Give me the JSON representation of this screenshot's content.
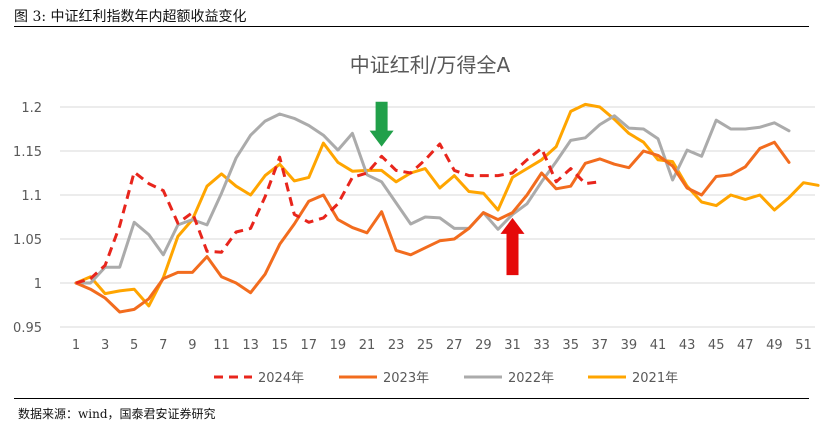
{
  "figure_caption": "图 3:  中证红利指数年内超额收益变化",
  "source_note": "数据来源：wind，国泰君安证券研究",
  "colors": {
    "s2024": "#E8251C",
    "s2023": "#F26C1E",
    "s2022": "#ABABAB",
    "s2021": "#FFA500",
    "arrow_up": "#E50A0A",
    "arrow_down": "#21A04A"
  },
  "chart_data": {
    "type": "line",
    "title": "中证红利/万得全A",
    "xlabel": "",
    "ylabel": "",
    "xlim": [
      1,
      52
    ],
    "ylim": [
      0.95,
      1.2
    ],
    "yticks": [
      "0.95",
      "1",
      "1.05",
      "1.1",
      "1.15",
      "1.2"
    ],
    "xticks": [
      "1",
      "3",
      "5",
      "7",
      "9",
      "11",
      "13",
      "15",
      "17",
      "19",
      "21",
      "23",
      "25",
      "27",
      "29",
      "31",
      "33",
      "35",
      "37",
      "39",
      "41",
      "43",
      "45",
      "47",
      "49",
      "51"
    ],
    "grid": true,
    "legend_position": "bottom",
    "annotations": [
      {
        "type": "arrow-down",
        "x": 22,
        "y_tip": 1.155,
        "y_tail": 1.206
      },
      {
        "type": "arrow-up",
        "x": 31,
        "y_tip": 1.074,
        "y_tail": 1.009
      }
    ],
    "series": [
      {
        "name": "2024年",
        "style": "dashed",
        "values": [
          1.0,
          1.005,
          1.02,
          1.065,
          1.126,
          1.113,
          1.105,
          1.068,
          1.08,
          1.036,
          1.035,
          1.058,
          1.062,
          1.098,
          1.143,
          1.078,
          1.069,
          1.074,
          1.09,
          1.12,
          1.125,
          1.144,
          1.128,
          1.125,
          1.14,
          1.158,
          1.128,
          1.122,
          1.122,
          1.122,
          1.125,
          1.14,
          1.153,
          1.115,
          1.13,
          1.113,
          1.115
        ]
      },
      {
        "name": "2023年",
        "style": "solid",
        "values": [
          1.0,
          0.993,
          0.983,
          0.967,
          0.97,
          0.982,
          1.005,
          1.012,
          1.012,
          1.03,
          1.007,
          1.0,
          0.989,
          1.01,
          1.044,
          1.067,
          1.093,
          1.1,
          1.072,
          1.063,
          1.057,
          1.081,
          1.037,
          1.032,
          1.04,
          1.048,
          1.05,
          1.062,
          1.08,
          1.072,
          1.08,
          1.1,
          1.125,
          1.107,
          1.11,
          1.136,
          1.141,
          1.135,
          1.131,
          1.15,
          1.145,
          1.133,
          1.108,
          1.1,
          1.121,
          1.123,
          1.132,
          1.153,
          1.16,
          1.137
        ]
      },
      {
        "name": "2022年",
        "style": "solid",
        "values": [
          1.0,
          1.0,
          1.018,
          1.018,
          1.069,
          1.055,
          1.032,
          1.066,
          1.072,
          1.066,
          1.102,
          1.142,
          1.168,
          1.184,
          1.192,
          1.187,
          1.179,
          1.168,
          1.151,
          1.17,
          1.123,
          1.115,
          1.091,
          1.067,
          1.075,
          1.074,
          1.062,
          1.062,
          1.08,
          1.061,
          1.078,
          1.09,
          1.115,
          1.138,
          1.162,
          1.165,
          1.18,
          1.19,
          1.176,
          1.175,
          1.164,
          1.117,
          1.151,
          1.144,
          1.185,
          1.175,
          1.175,
          1.177,
          1.182,
          1.173
        ]
      },
      {
        "name": "2021年",
        "style": "solid",
        "values": [
          1.0,
          1.007,
          0.988,
          0.991,
          0.993,
          0.974,
          1.006,
          1.053,
          1.072,
          1.11,
          1.124,
          1.11,
          1.1,
          1.122,
          1.135,
          1.116,
          1.12,
          1.159,
          1.137,
          1.127,
          1.128,
          1.128,
          1.115,
          1.125,
          1.13,
          1.108,
          1.122,
          1.104,
          1.102,
          1.083,
          1.12,
          1.13,
          1.14,
          1.155,
          1.195,
          1.203,
          1.2,
          1.186,
          1.17,
          1.16,
          1.14,
          1.138,
          1.11,
          1.092,
          1.088,
          1.1,
          1.095,
          1.1,
          1.083,
          1.097,
          1.114,
          1.111
        ]
      }
    ]
  }
}
